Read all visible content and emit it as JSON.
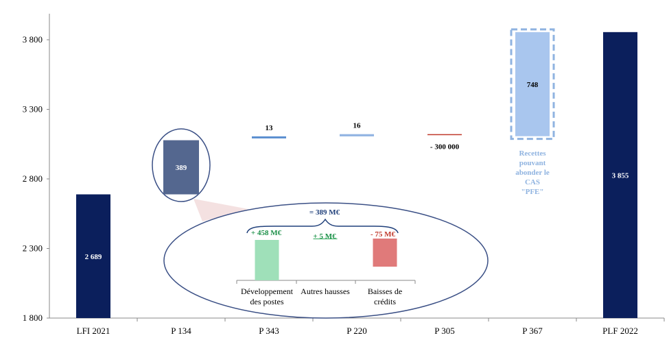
{
  "chart_data": {
    "type": "bar",
    "subtype": "waterfall",
    "categories": [
      "LFI 2021",
      "P 134",
      "P 343",
      "P 220",
      "P 305",
      "P 367",
      "PLF 2022"
    ],
    "bars": [
      {
        "category": "LFI 2021",
        "kind": "total",
        "base": 0,
        "top": 2689,
        "label": "2 689",
        "color": "#0b1f5c"
      },
      {
        "category": "P 134",
        "kind": "delta",
        "base": 2689,
        "top": 3078,
        "label": "389",
        "color": "#54678f"
      },
      {
        "category": "P 343",
        "kind": "delta",
        "base": 3078,
        "top": 3091,
        "label": "13",
        "color": "#5b8fd0"
      },
      {
        "category": "P 220",
        "kind": "delta",
        "base": 3091,
        "top": 3107,
        "label": "16",
        "color": "#93b5e3"
      },
      {
        "category": "P 305",
        "kind": "delta",
        "base": 3107,
        "top": 3107,
        "label": "- 300 000",
        "color": "#c0392b"
      },
      {
        "category": "P 367",
        "kind": "delta",
        "base": 3107,
        "top": 3855,
        "label": "748",
        "color": "#a9c6ee",
        "dashed": true
      },
      {
        "category": "PLF 2022",
        "kind": "total",
        "base": 0,
        "top": 3855,
        "label": "3 855",
        "color": "#0b1f5c"
      }
    ],
    "yticks": [
      "1 800",
      "2 300",
      "2 800",
      "3 300",
      "3 800"
    ],
    "ytick_values": [
      1800,
      2300,
      2800,
      3300,
      3800
    ],
    "ylim": [
      1800,
      3800
    ],
    "grid": false,
    "annotation_p367": [
      "Recettes",
      "pouvant",
      "abonder le",
      "CAS",
      "\"PFE\""
    ],
    "inset": {
      "sum_label": "= 389 M€",
      "categories": [
        [
          "Développement",
          "des postes"
        ],
        [
          "Autres hausses"
        ],
        [
          "Baisses de",
          "crédits"
        ]
      ],
      "values": [
        458,
        5,
        -75
      ],
      "labels": [
        "+ 458 M€",
        "+ 5 M€",
        "- 75 M€"
      ],
      "colors": [
        "#9fe0b9",
        "#2eaa5a",
        "#e07a7a"
      ],
      "label_colors": [
        "#1a8f47",
        "#1a8f47",
        "#c0392b"
      ]
    }
  }
}
